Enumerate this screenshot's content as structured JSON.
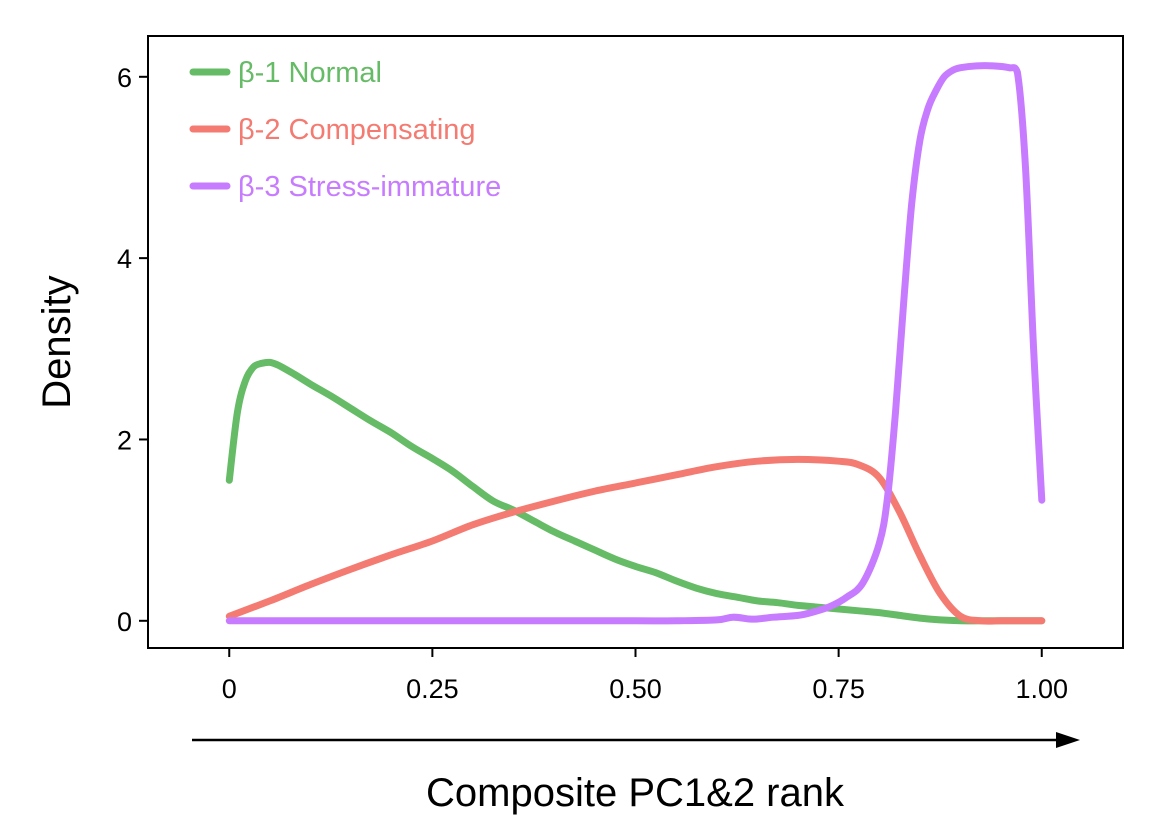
{
  "chart_data": {
    "type": "line",
    "title": "",
    "xlabel": "Composite PC1&2 rank",
    "ylabel": "Density",
    "xlim": [
      -0.1,
      1.1
    ],
    "ylim": [
      -0.3,
      6.45
    ],
    "x_ticks": [
      0,
      0.25,
      0.5,
      0.75,
      1.0
    ],
    "x_tick_labels": [
      "0",
      "0.25",
      "0.50",
      "0.75",
      "1.00"
    ],
    "y_ticks": [
      0,
      2,
      4,
      6
    ],
    "y_tick_labels": [
      "0",
      "2",
      "4",
      "6"
    ],
    "grid": false,
    "legend_position": "top-left",
    "x_axis_arrow": true,
    "series": [
      {
        "name": "β-1 Normal",
        "color": "#66bb66",
        "x": [
          0,
          0.01,
          0.02,
          0.03,
          0.04,
          0.05,
          0.06,
          0.08,
          0.1,
          0.125,
          0.15,
          0.175,
          0.2,
          0.225,
          0.25,
          0.275,
          0.3,
          0.325,
          0.35,
          0.375,
          0.4,
          0.425,
          0.45,
          0.475,
          0.5,
          0.525,
          0.55,
          0.575,
          0.6,
          0.625,
          0.65,
          0.675,
          0.7,
          0.725,
          0.75,
          0.775,
          0.8,
          0.825,
          0.85,
          0.875,
          0.9,
          0.925,
          0.95,
          0.975,
          1.0
        ],
        "y": [
          1.55,
          2.3,
          2.65,
          2.8,
          2.84,
          2.85,
          2.82,
          2.72,
          2.61,
          2.48,
          2.34,
          2.2,
          2.07,
          1.92,
          1.79,
          1.65,
          1.48,
          1.32,
          1.22,
          1.1,
          0.98,
          0.88,
          0.78,
          0.68,
          0.6,
          0.53,
          0.44,
          0.36,
          0.3,
          0.26,
          0.22,
          0.2,
          0.17,
          0.15,
          0.13,
          0.11,
          0.09,
          0.06,
          0.03,
          0.01,
          0.0,
          0.0,
          0.0,
          0.0,
          0.0
        ]
      },
      {
        "name": "β-2 Compensating",
        "color": "#f47b72",
        "x": [
          0,
          0.05,
          0.1,
          0.15,
          0.2,
          0.25,
          0.3,
          0.35,
          0.4,
          0.45,
          0.5,
          0.55,
          0.6,
          0.65,
          0.7,
          0.75,
          0.775,
          0.8,
          0.825,
          0.85,
          0.875,
          0.9,
          0.925,
          0.95,
          0.975,
          1.0
        ],
        "y": [
          0.05,
          0.22,
          0.4,
          0.57,
          0.73,
          0.88,
          1.06,
          1.2,
          1.32,
          1.43,
          1.52,
          1.61,
          1.7,
          1.76,
          1.78,
          1.76,
          1.72,
          1.58,
          1.2,
          0.72,
          0.3,
          0.05,
          0.0,
          0.0,
          0.0,
          0.0
        ]
      },
      {
        "name": "β-3 Stress-immature",
        "color": "#c77cff",
        "x": [
          0,
          0.1,
          0.2,
          0.3,
          0.4,
          0.5,
          0.55,
          0.6,
          0.62,
          0.64,
          0.65,
          0.67,
          0.7,
          0.72,
          0.74,
          0.76,
          0.78,
          0.8,
          0.81,
          0.82,
          0.83,
          0.84,
          0.85,
          0.86,
          0.87,
          0.88,
          0.89,
          0.9,
          0.92,
          0.94,
          0.96,
          0.97,
          0.98,
          0.99,
          1.0
        ],
        "y": [
          0.0,
          0.0,
          0.0,
          0.0,
          0.0,
          0.0,
          0.0,
          0.01,
          0.04,
          0.02,
          0.02,
          0.04,
          0.06,
          0.1,
          0.16,
          0.26,
          0.42,
          0.85,
          1.35,
          2.3,
          3.5,
          4.6,
          5.3,
          5.65,
          5.85,
          6.0,
          6.07,
          6.1,
          6.12,
          6.12,
          6.1,
          6.05,
          5.0,
          3.0,
          1.33
        ]
      }
    ]
  }
}
